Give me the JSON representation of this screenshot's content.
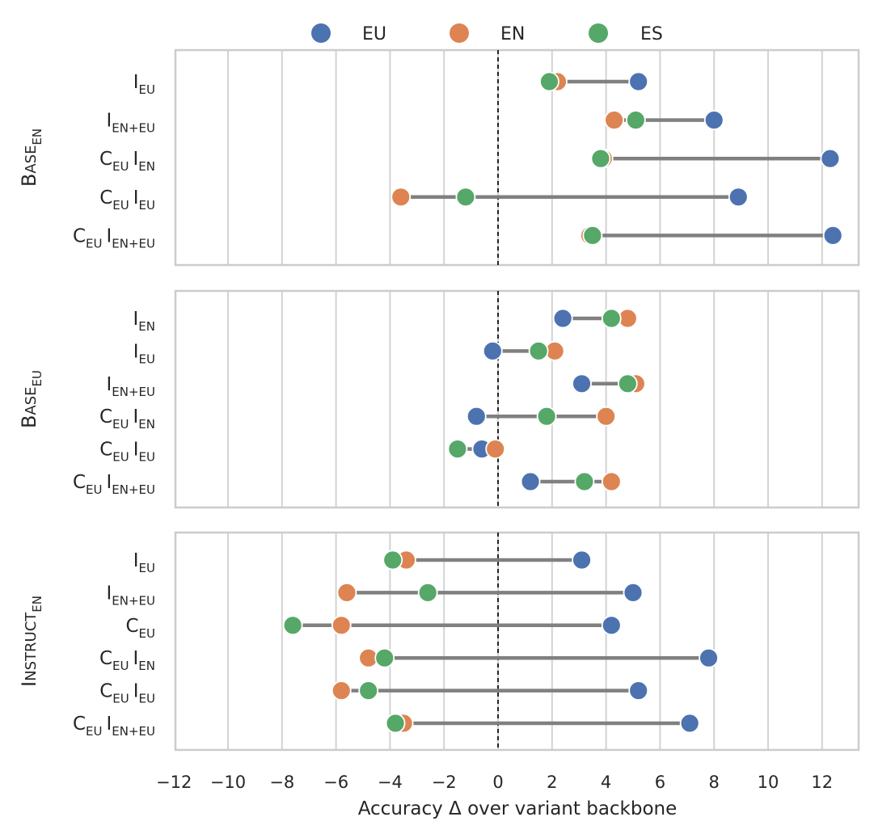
{
  "chart_data": {
    "type": "scatter",
    "subtype": "dumbbell",
    "xlabel": "Accuracy Δ over variant backbone",
    "xlim": [
      -12,
      13.4
    ],
    "xticks": [
      -12,
      -10,
      -8,
      -6,
      -4,
      -2,
      0,
      2,
      4,
      6,
      8,
      10,
      12
    ],
    "xtick_labels": [
      "−12",
      "−10",
      "−8",
      "−6",
      "−4",
      "−2",
      "0",
      "2",
      "4",
      "6",
      "8",
      "10",
      "12"
    ],
    "reference_line_x": 0,
    "grid": "vertical",
    "legend": {
      "position": "top-center",
      "entries": [
        {
          "key": "EU",
          "label": "EU",
          "color": "#4C72B0"
        },
        {
          "key": "EN",
          "label": "EN",
          "color": "#DD8452"
        },
        {
          "key": "ES",
          "label": "ES",
          "color": "#55A868"
        }
      ]
    },
    "connector_color": "#808080",
    "panels": [
      {
        "label": {
          "parts": [
            {
              "text": "B",
              "style": "main"
            },
            {
              "text": "ASE",
              "style": "sc"
            },
            {
              "text": "EN",
              "style": "sub"
            }
          ]
        },
        "rows": [
          {
            "label": [
              {
                "text": "I",
                "sub": "EU"
              }
            ],
            "values": {
              "EU": 5.2,
              "EN": 2.2,
              "ES": 1.9
            }
          },
          {
            "label": [
              {
                "text": "I",
                "sub": "EN+EU"
              }
            ],
            "values": {
              "EU": 8.0,
              "EN": 4.3,
              "ES": 5.1
            }
          },
          {
            "label": [
              {
                "text": "C",
                "sub": "EU"
              },
              {
                "text": "I",
                "sub": "EN"
              }
            ],
            "values": {
              "EU": 12.3,
              "EN": 3.9,
              "ES": 3.8
            }
          },
          {
            "label": [
              {
                "text": "C",
                "sub": "EU"
              },
              {
                "text": "I",
                "sub": "EU"
              }
            ],
            "values": {
              "EU": 8.9,
              "EN": -3.6,
              "ES": -1.2
            }
          },
          {
            "label": [
              {
                "text": "C",
                "sub": "EU"
              },
              {
                "text": "I",
                "sub": "EN+EU"
              }
            ],
            "values": {
              "EU": 12.4,
              "EN": 3.4,
              "ES": 3.5
            }
          }
        ]
      },
      {
        "label": {
          "parts": [
            {
              "text": "B",
              "style": "main"
            },
            {
              "text": "ASE",
              "style": "sc"
            },
            {
              "text": "EU",
              "style": "sub"
            }
          ]
        },
        "rows": [
          {
            "label": [
              {
                "text": "I",
                "sub": "EN"
              }
            ],
            "values": {
              "EU": 2.4,
              "EN": 4.8,
              "ES": 4.2
            }
          },
          {
            "label": [
              {
                "text": "I",
                "sub": "EU"
              }
            ],
            "values": {
              "EU": -0.2,
              "EN": 2.1,
              "ES": 1.5
            }
          },
          {
            "label": [
              {
                "text": "I",
                "sub": "EN+EU"
              }
            ],
            "values": {
              "EU": 3.1,
              "EN": 5.1,
              "ES": 4.8
            }
          },
          {
            "label": [
              {
                "text": "C",
                "sub": "EU"
              },
              {
                "text": "I",
                "sub": "EN"
              }
            ],
            "values": {
              "EU": -0.8,
              "EN": 4.0,
              "ES": 1.8
            }
          },
          {
            "label": [
              {
                "text": "C",
                "sub": "EU"
              },
              {
                "text": "I",
                "sub": "EU"
              }
            ],
            "values": {
              "EU": -0.6,
              "EN": -0.1,
              "ES": -1.5
            }
          },
          {
            "label": [
              {
                "text": "C",
                "sub": "EU"
              },
              {
                "text": "I",
                "sub": "EN+EU"
              }
            ],
            "values": {
              "EU": 1.2,
              "EN": 4.2,
              "ES": 3.2
            }
          }
        ]
      },
      {
        "label": {
          "parts": [
            {
              "text": "I",
              "style": "main"
            },
            {
              "text": "NSTRUCT",
              "style": "sc"
            },
            {
              "text": "EN",
              "style": "sub"
            }
          ]
        },
        "rows": [
          {
            "label": [
              {
                "text": "I",
                "sub": "EU"
              }
            ],
            "values": {
              "EU": 3.1,
              "EN": -3.4,
              "ES": -3.9
            }
          },
          {
            "label": [
              {
                "text": "I",
                "sub": "EN+EU"
              }
            ],
            "values": {
              "EU": 5.0,
              "EN": -5.6,
              "ES": -2.6
            }
          },
          {
            "label": [
              {
                "text": "C",
                "sub": "EU"
              }
            ],
            "values": {
              "EU": 4.2,
              "EN": -5.8,
              "ES": -7.6
            }
          },
          {
            "label": [
              {
                "text": "C",
                "sub": "EU"
              },
              {
                "text": "I",
                "sub": "EN"
              }
            ],
            "values": {
              "EU": 7.8,
              "EN": -4.8,
              "ES": -4.2
            }
          },
          {
            "label": [
              {
                "text": "C",
                "sub": "EU"
              },
              {
                "text": "I",
                "sub": "EU"
              }
            ],
            "values": {
              "EU": 5.2,
              "EN": -5.8,
              "ES": -4.8
            }
          },
          {
            "label": [
              {
                "text": "C",
                "sub": "EU"
              },
              {
                "text": "I",
                "sub": "EN+EU"
              }
            ],
            "values": {
              "EU": 7.1,
              "EN": -3.5,
              "ES": -3.8
            }
          }
        ]
      }
    ]
  }
}
